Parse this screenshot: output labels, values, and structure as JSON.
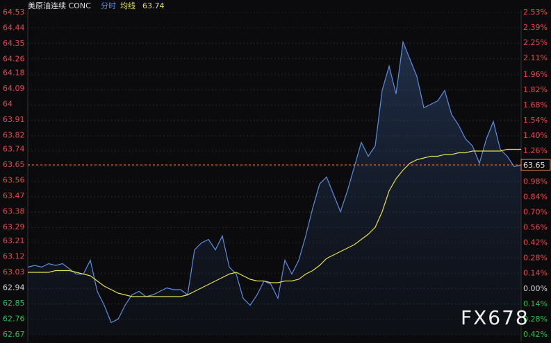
{
  "chart_data": {
    "type": "line",
    "header": {
      "symbol": "美原油连续 CONC",
      "mode": "分时",
      "average_name": "均线",
      "average_value": "63.74"
    },
    "watermark": "FX678",
    "series": [
      {
        "name": "分时",
        "color": "#5b8fe0",
        "values": [
          63.06,
          63.07,
          63.06,
          63.08,
          63.07,
          63.08,
          63.05,
          63.02,
          63.02,
          63.1,
          62.92,
          62.84,
          62.74,
          62.76,
          62.84,
          62.9,
          62.92,
          62.89,
          62.9,
          62.92,
          62.94,
          62.93,
          62.93,
          62.9,
          63.16,
          63.2,
          63.22,
          63.16,
          63.24,
          63.06,
          63.02,
          62.88,
          62.84,
          62.9,
          62.98,
          62.96,
          62.88,
          63.1,
          63.02,
          63.1,
          63.24,
          63.4,
          63.54,
          63.58,
          63.48,
          63.38,
          63.5,
          63.64,
          63.78,
          63.7,
          63.76,
          64.08,
          64.22,
          64.06,
          64.36,
          64.26,
          64.16,
          63.98,
          64.0,
          64.02,
          64.08,
          63.94,
          63.88,
          63.8,
          63.76,
          63.66,
          63.8,
          63.9,
          63.74,
          63.7,
          63.64,
          63.65
        ]
      },
      {
        "name": "均线",
        "color": "#e6e04a",
        "values": [
          63.03,
          63.03,
          63.03,
          63.03,
          63.04,
          63.04,
          63.04,
          63.03,
          63.02,
          63.01,
          62.98,
          62.95,
          62.93,
          62.91,
          62.9,
          62.89,
          62.89,
          62.89,
          62.89,
          62.89,
          62.89,
          62.89,
          62.89,
          62.9,
          62.92,
          62.94,
          62.96,
          62.98,
          63.0,
          63.02,
          63.03,
          63.01,
          62.99,
          62.98,
          62.98,
          62.97,
          62.97,
          62.98,
          62.98,
          62.99,
          63.02,
          63.04,
          63.07,
          63.11,
          63.13,
          63.15,
          63.17,
          63.19,
          63.22,
          63.25,
          63.29,
          63.38,
          63.5,
          63.57,
          63.62,
          63.66,
          63.68,
          63.69,
          63.7,
          63.7,
          63.71,
          63.71,
          63.72,
          63.72,
          63.73,
          63.73,
          63.73,
          63.73,
          63.73,
          63.74,
          63.74,
          63.74
        ]
      }
    ],
    "last_price": 63.65,
    "ylim": [
      62.67,
      64.53
    ],
    "yticks": [
      64.53,
      64.44,
      64.35,
      64.26,
      64.18,
      64.09,
      64.0,
      63.91,
      63.82,
      63.74,
      63.65,
      63.56,
      63.47,
      63.38,
      63.29,
      63.21,
      63.12,
      63.03,
      62.94,
      62.85,
      62.76,
      62.67
    ],
    "y2lim": [
      -0.42,
      2.53
    ],
    "y2ticks": [
      {
        "value": 2.53,
        "label": "2.53%"
      },
      {
        "value": 2.39,
        "label": "2.39%"
      },
      {
        "value": 2.25,
        "label": "2.25%"
      },
      {
        "value": 2.11,
        "label": "2.11%"
      },
      {
        "value": 1.96,
        "label": "1.96%"
      },
      {
        "value": 1.82,
        "label": "1.82%"
      },
      {
        "value": 1.68,
        "label": "1.68%"
      },
      {
        "value": 1.54,
        "label": "1.54%"
      },
      {
        "value": 1.4,
        "label": "1.40%"
      },
      {
        "value": 1.26,
        "label": "1.26%"
      },
      {
        "value": 1.12,
        "label": "1.12%"
      },
      {
        "value": 0.98,
        "label": "0.98%"
      },
      {
        "value": 0.84,
        "label": "0.84%"
      },
      {
        "value": 0.7,
        "label": "0.70%"
      },
      {
        "value": 0.56,
        "label": "0.56%"
      },
      {
        "value": 0.42,
        "label": "0.42%"
      },
      {
        "value": 0.28,
        "label": "0.28%"
      },
      {
        "value": 0.14,
        "label": "0.14%"
      },
      {
        "value": 0,
        "label": "0.00%"
      },
      {
        "value": -0.14,
        "label": "0.14%"
      },
      {
        "value": -0.28,
        "label": "0.28%"
      },
      {
        "value": -0.42,
        "label": "0.42%"
      }
    ],
    "grid": true,
    "up_color": "#e84a4a",
    "down_color": "#2fbf4f",
    "flat_color": "#d8d8d8",
    "last_color": "#e8884a"
  }
}
